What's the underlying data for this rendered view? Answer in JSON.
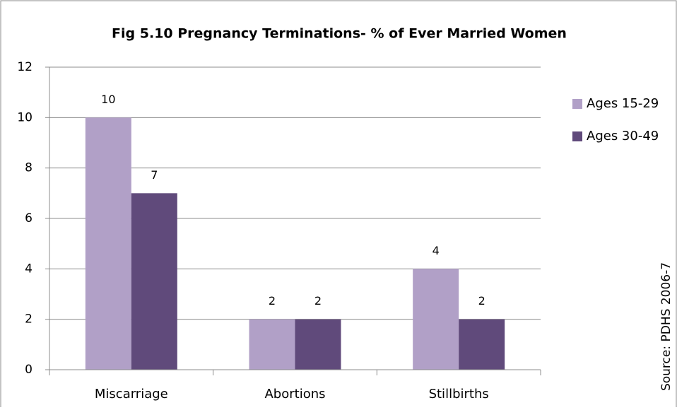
{
  "chart_data": {
    "type": "bar",
    "title": "Fig 5.10 Pregnancy Terminations- % of Ever Married Women",
    "categories": [
      "Miscarriage",
      "Abortions",
      "Stillbirths"
    ],
    "series": [
      {
        "name": "Ages 15-29",
        "color": "#b1a0c7",
        "values": [
          10,
          2,
          4
        ]
      },
      {
        "name": "Ages 30-49",
        "color": "#604a7b",
        "values": [
          7,
          2,
          2
        ]
      }
    ],
    "ylim": [
      0,
      12
    ],
    "yticks": [
      0,
      2,
      4,
      6,
      8,
      10,
      12
    ],
    "grid": true,
    "legend": "right",
    "annotation": "Source: PDHS 2006-7"
  }
}
